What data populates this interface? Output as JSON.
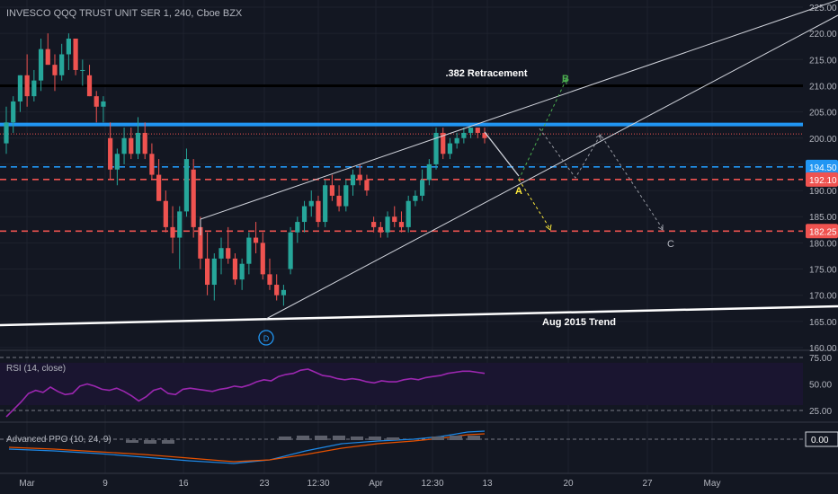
{
  "header": {
    "symbol_title": "INVESCO QQQ TRUST UNIT SER 1, 240, Cboe BZX"
  },
  "colors": {
    "background": "#131722",
    "up": "#26a69a",
    "down": "#ef5350",
    "rsi": "#9c27b0",
    "blue_level": "#2196f3",
    "text": "#b2b5be",
    "wave_a": "#ffeb3b",
    "wave_b": "#4caf50",
    "wave_c": "#b2b5be",
    "wave_d": "#2196f3"
  },
  "chart_data": [
    {
      "type": "candlestick",
      "title": "INVESCO QQQ TRUST UNIT SER 1, 240, Cboe BZX",
      "ylim": [
        159,
        226
      ],
      "y_ticks": [
        160,
        165,
        170,
        175,
        180,
        185,
        190,
        195,
        200,
        205,
        210,
        215,
        220,
        225
      ],
      "x_ticks": [
        "Mar",
        "9",
        "16",
        "23",
        "12:30",
        "Apr",
        "12:30",
        "13",
        "20",
        "27",
        "May"
      ],
      "grid": true,
      "candles": [
        {
          "o": 199,
          "h": 206,
          "l": 197,
          "c": 203
        },
        {
          "o": 203,
          "h": 208,
          "l": 201,
          "c": 207
        },
        {
          "o": 207,
          "h": 212,
          "l": 205,
          "c": 212
        },
        {
          "o": 212,
          "h": 216,
          "l": 206,
          "c": 208
        },
        {
          "o": 208,
          "h": 213,
          "l": 207,
          "c": 211
        },
        {
          "o": 211,
          "h": 219,
          "l": 209,
          "c": 217
        },
        {
          "o": 217,
          "h": 220,
          "l": 214,
          "c": 214
        },
        {
          "o": 214,
          "h": 216,
          "l": 209,
          "c": 212
        },
        {
          "o": 212,
          "h": 218,
          "l": 211,
          "c": 216
        },
        {
          "o": 216,
          "h": 220,
          "l": 213,
          "c": 219
        },
        {
          "o": 219,
          "h": 219,
          "l": 212,
          "c": 213
        },
        {
          "o": 213,
          "h": 215,
          "l": 210,
          "c": 213
        },
        {
          "o": 212,
          "h": 214,
          "l": 208,
          "c": 208
        },
        {
          "o": 208,
          "h": 209,
          "l": 203,
          "c": 206
        },
        {
          "o": 206,
          "h": 208,
          "l": 203,
          "c": 207
        },
        {
          "o": 200,
          "h": 203,
          "l": 192,
          "c": 194
        },
        {
          "o": 194,
          "h": 198,
          "l": 191,
          "c": 197
        },
        {
          "o": 197,
          "h": 202,
          "l": 195,
          "c": 200
        },
        {
          "o": 200,
          "h": 202,
          "l": 196,
          "c": 197
        },
        {
          "o": 197,
          "h": 204,
          "l": 196,
          "c": 201
        },
        {
          "o": 201,
          "h": 203,
          "l": 196,
          "c": 197
        },
        {
          "o": 197,
          "h": 199,
          "l": 192,
          "c": 193
        },
        {
          "o": 193,
          "h": 196,
          "l": 188,
          "c": 188
        },
        {
          "o": 188,
          "h": 190,
          "l": 182,
          "c": 183
        },
        {
          "o": 183,
          "h": 187,
          "l": 178,
          "c": 181
        },
        {
          "o": 181,
          "h": 187,
          "l": 175,
          "c": 186
        },
        {
          "o": 186,
          "h": 198,
          "l": 185,
          "c": 196
        },
        {
          "o": 194,
          "h": 196,
          "l": 181,
          "c": 183
        },
        {
          "o": 183,
          "h": 185,
          "l": 175,
          "c": 177
        },
        {
          "o": 177,
          "h": 182,
          "l": 170,
          "c": 172
        },
        {
          "o": 172,
          "h": 178,
          "l": 169,
          "c": 177
        },
        {
          "o": 177,
          "h": 181,
          "l": 174,
          "c": 179
        },
        {
          "o": 179,
          "h": 183,
          "l": 176,
          "c": 177
        },
        {
          "o": 177,
          "h": 178,
          "l": 172,
          "c": 173
        },
        {
          "o": 173,
          "h": 177,
          "l": 171,
          "c": 176
        },
        {
          "o": 176,
          "h": 182,
          "l": 174,
          "c": 181
        },
        {
          "o": 181,
          "h": 184,
          "l": 178,
          "c": 180
        },
        {
          "o": 180,
          "h": 182,
          "l": 173,
          "c": 174
        },
        {
          "o": 174,
          "h": 177,
          "l": 171,
          "c": 172
        },
        {
          "o": 172,
          "h": 174,
          "l": 169,
          "c": 170
        },
        {
          "o": 170,
          "h": 172,
          "l": 168,
          "c": 171
        },
        {
          "o": 175,
          "h": 183,
          "l": 174,
          "c": 182
        },
        {
          "o": 182,
          "h": 185,
          "l": 180,
          "c": 184
        },
        {
          "o": 184,
          "h": 188,
          "l": 182,
          "c": 187
        },
        {
          "o": 187,
          "h": 190,
          "l": 185,
          "c": 188
        },
        {
          "o": 188,
          "h": 189,
          "l": 183,
          "c": 184
        },
        {
          "o": 184,
          "h": 192,
          "l": 183,
          "c": 191
        },
        {
          "o": 191,
          "h": 193,
          "l": 188,
          "c": 189
        },
        {
          "o": 189,
          "h": 191,
          "l": 186,
          "c": 187
        },
        {
          "o": 187,
          "h": 192,
          "l": 186,
          "c": 191
        },
        {
          "o": 191,
          "h": 194,
          "l": 189,
          "c": 193
        },
        {
          "o": 193,
          "h": 195,
          "l": 191,
          "c": 192
        },
        {
          "o": 192,
          "h": 193,
          "l": 189,
          "c": 190
        },
        {
          "o": 184,
          "h": 185,
          "l": 182,
          "c": 183
        },
        {
          "o": 183,
          "h": 184,
          "l": 181,
          "c": 182
        },
        {
          "o": 182,
          "h": 186,
          "l": 181,
          "c": 185
        },
        {
          "o": 185,
          "h": 187,
          "l": 183,
          "c": 184
        },
        {
          "o": 184,
          "h": 186,
          "l": 182,
          "c": 183
        },
        {
          "o": 183,
          "h": 189,
          "l": 182,
          "c": 188
        },
        {
          "o": 188,
          "h": 190,
          "l": 187,
          "c": 189
        },
        {
          "o": 189,
          "h": 194,
          "l": 188,
          "c": 192
        },
        {
          "o": 192,
          "h": 196,
          "l": 191,
          "c": 195
        },
        {
          "o": 195,
          "h": 202,
          "l": 194,
          "c": 201
        },
        {
          "o": 201,
          "h": 202,
          "l": 196,
          "c": 197
        },
        {
          "o": 197,
          "h": 200,
          "l": 196,
          "c": 199
        },
        {
          "o": 199,
          "h": 201,
          "l": 198,
          "c": 200
        },
        {
          "o": 200,
          "h": 202,
          "l": 199,
          "c": 201
        },
        {
          "o": 201,
          "h": 202,
          "l": 200,
          "c": 202
        },
        {
          "o": 202,
          "h": 202,
          "l": 200,
          "c": 201
        },
        {
          "o": 201,
          "h": 202,
          "l": 199,
          "c": 200
        }
      ],
      "horizontal_levels": [
        {
          "value": 210,
          "style": "solid",
          "color": "#000000",
          "label": ".382 Retracement"
        },
        {
          "value": 202.6,
          "style": "solid",
          "color": "#2196f3"
        },
        {
          "value": 200.8,
          "style": "dotted",
          "color": "#ef5350"
        },
        {
          "value": 194.5,
          "style": "dashed",
          "color": "#2196f3",
          "tag": "194.50"
        },
        {
          "value": 192.1,
          "style": "dashed",
          "color": "#ef5350",
          "tag": "192.10"
        },
        {
          "value": 182.25,
          "style": "dashed",
          "color": "#ef5350",
          "tag": "182.25"
        }
      ],
      "trend_label": "Aug 2015 Trend",
      "wave_labels": [
        "A",
        "B",
        "C",
        "D"
      ]
    },
    {
      "type": "line",
      "title": "RSI (14, close)",
      "ylim": [
        15,
        80
      ],
      "y_ticks": [
        25,
        50,
        75
      ],
      "y_tick_labels": [
        "25.00",
        "50.00",
        "75.00"
      ],
      "series": [
        {
          "values": [
            19,
            26,
            33,
            41,
            44,
            42,
            47,
            43,
            40,
            41,
            48,
            50,
            48,
            45,
            44,
            46,
            43,
            39,
            34,
            38,
            44,
            46,
            41,
            40,
            45,
            46,
            45,
            44,
            43,
            45,
            46,
            48,
            47,
            49,
            52,
            54,
            53,
            57,
            59,
            60,
            63,
            64,
            61,
            58,
            57,
            55,
            54,
            55,
            54,
            52,
            51,
            53,
            52,
            52,
            54,
            55,
            54,
            56,
            57,
            58,
            60,
            61,
            62,
            62,
            61,
            60
          ]
        }
      ]
    },
    {
      "type": "histogram",
      "title": "Advanced PPO (10, 24, 9)",
      "y_tick_labels": [
        "0.00"
      ]
    }
  ]
}
